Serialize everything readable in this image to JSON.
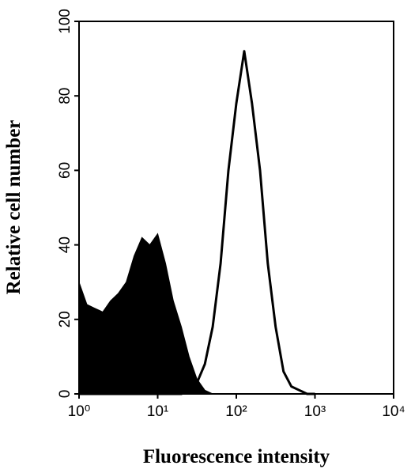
{
  "chart_data": {
    "type": "histogram",
    "x_label": "Fluorescence intensity",
    "y_label": "Relative cell number",
    "xscale": "log",
    "xlim": [
      1,
      10000
    ],
    "ylim": [
      0,
      100
    ],
    "xticks": [
      {
        "value": 1,
        "label": "10⁰"
      },
      {
        "value": 10,
        "label": "10¹"
      },
      {
        "value": 100,
        "label": "10²"
      },
      {
        "value": 1000,
        "label": "10³"
      },
      {
        "value": 10000,
        "label": "10⁴"
      }
    ],
    "yticks": [
      0,
      20,
      40,
      60,
      80,
      100
    ],
    "x": [
      1,
      1.26,
      1.58,
      2,
      2.51,
      3.16,
      3.98,
      5.01,
      6.31,
      7.94,
      10,
      12.6,
      15.8,
      20,
      25.1,
      31.6,
      39.8,
      50.1,
      63.1,
      79.4,
      100,
      126,
      158,
      200,
      251,
      316,
      398,
      501,
      631,
      794,
      1000
    ],
    "series": [
      {
        "style": "filled",
        "color": "#000000",
        "values": [
          30,
          24,
          23,
          22,
          25,
          27,
          30,
          37,
          42,
          40,
          43,
          35,
          25,
          18,
          10,
          4,
          1,
          0,
          0,
          0,
          0,
          0,
          0,
          0,
          0,
          0,
          0,
          0,
          0,
          0,
          0
        ]
      },
      {
        "style": "outline",
        "color": "#000000",
        "values": [
          0,
          0,
          0,
          0,
          0,
          0,
          0,
          0,
          0,
          0,
          0,
          0,
          0,
          0,
          1,
          3,
          8,
          18,
          35,
          60,
          78,
          92,
          78,
          60,
          35,
          18,
          6,
          2,
          1,
          0,
          0
        ]
      }
    ]
  }
}
